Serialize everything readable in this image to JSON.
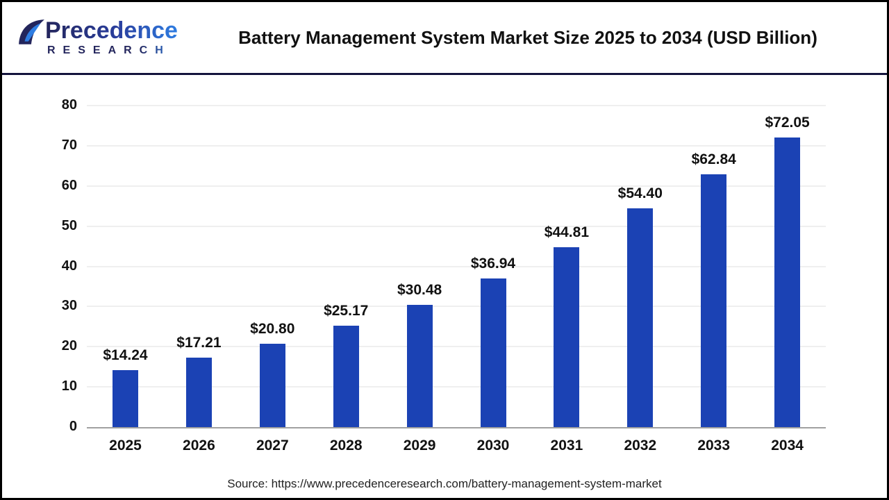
{
  "header": {
    "logo": {
      "line1": "Precedence",
      "line2": "RESEARCH"
    },
    "title": "Battery Management System Market Size 2025 to 2034 (USD Billion)"
  },
  "chart_data": {
    "type": "bar",
    "title": "Battery Management System Market Size 2025 to 2034 (USD Billion)",
    "categories": [
      "2025",
      "2026",
      "2027",
      "2028",
      "2029",
      "2030",
      "2031",
      "2032",
      "2033",
      "2034"
    ],
    "values": [
      14.24,
      17.21,
      20.8,
      25.17,
      30.48,
      36.94,
      44.81,
      54.4,
      62.84,
      72.05
    ],
    "value_labels": [
      "$14.24",
      "$17.21",
      "$20.80",
      "$25.17",
      "$30.48",
      "$36.94",
      "$44.81",
      "$54.40",
      "$62.84",
      "$72.05"
    ],
    "ylabel": "",
    "xlabel": "",
    "ylim": [
      0,
      80
    ],
    "yticks": [
      0,
      10,
      20,
      30,
      40,
      50,
      60,
      70,
      80
    ],
    "grid": true,
    "legend_position": "none",
    "bar_color": "#1b42b4"
  },
  "footer": {
    "source": "Source: https://www.precedenceresearch.com/battery-management-system-market"
  },
  "colors": {
    "bar": "#1b42b4",
    "divider": "#14143c",
    "gridline": "#efefef",
    "axis_line": "#a0a0a0",
    "logo_navy": "#23255c",
    "logo_blue": "#2e7de2"
  }
}
